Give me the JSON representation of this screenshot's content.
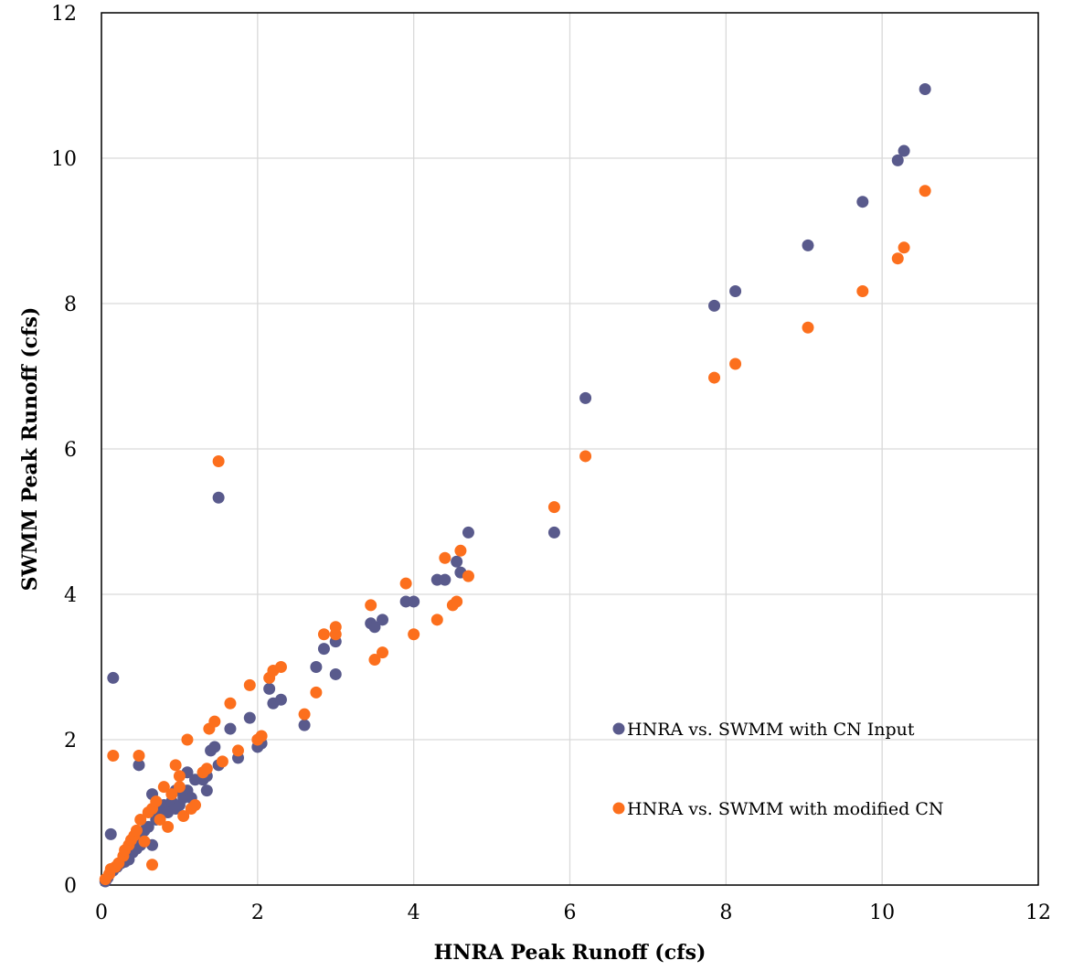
{
  "chart_data": {
    "type": "scatter",
    "title": "",
    "xlabel": "HNRA Peak Runoff (cfs)",
    "ylabel": "SWMM Peak Runoff (cfs)",
    "xlim": [
      0,
      12
    ],
    "ylim": [
      0,
      12
    ],
    "xticks": [
      0,
      2,
      4,
      6,
      8,
      10,
      12
    ],
    "yticks": [
      0,
      2,
      4,
      6,
      8,
      10,
      12
    ],
    "grid": true,
    "legend_position": "lower-right",
    "series": [
      {
        "name": "HNRA vs. SWMM with CN Input",
        "color": "#595a8c",
        "points": [
          [
            0.05,
            0.05
          ],
          [
            0.08,
            0.1
          ],
          [
            0.12,
            0.7
          ],
          [
            0.15,
            2.85
          ],
          [
            0.1,
            0.15
          ],
          [
            0.15,
            0.2
          ],
          [
            0.2,
            0.25
          ],
          [
            0.25,
            0.3
          ],
          [
            0.3,
            0.32
          ],
          [
            0.35,
            0.35
          ],
          [
            0.4,
            0.45
          ],
          [
            0.45,
            0.5
          ],
          [
            0.5,
            0.55
          ],
          [
            0.48,
            1.65
          ],
          [
            0.5,
            0.7
          ],
          [
            0.55,
            0.75
          ],
          [
            0.6,
            0.8
          ],
          [
            0.65,
            0.55
          ],
          [
            0.65,
            1.25
          ],
          [
            0.7,
            0.9
          ],
          [
            0.75,
            1.0
          ],
          [
            0.8,
            1.1
          ],
          [
            0.85,
            1.0
          ],
          [
            0.9,
            1.15
          ],
          [
            0.95,
            1.05
          ],
          [
            0.95,
            1.3
          ],
          [
            1.0,
            1.1
          ],
          [
            1.05,
            1.2
          ],
          [
            1.1,
            1.3
          ],
          [
            1.1,
            1.55
          ],
          [
            1.15,
            1.2
          ],
          [
            1.2,
            1.45
          ],
          [
            1.3,
            1.45
          ],
          [
            1.35,
            1.3
          ],
          [
            1.35,
            1.5
          ],
          [
            1.4,
            1.85
          ],
          [
            1.45,
            1.9
          ],
          [
            1.5,
            1.65
          ],
          [
            1.5,
            5.33
          ],
          [
            1.65,
            2.15
          ],
          [
            1.75,
            1.75
          ],
          [
            1.9,
            2.3
          ],
          [
            2.0,
            1.9
          ],
          [
            2.05,
            1.95
          ],
          [
            2.15,
            2.7
          ],
          [
            2.2,
            2.5
          ],
          [
            2.3,
            2.55
          ],
          [
            2.6,
            2.2
          ],
          [
            2.75,
            3.0
          ],
          [
            2.85,
            3.25
          ],
          [
            3.0,
            2.9
          ],
          [
            3.0,
            3.35
          ],
          [
            3.45,
            3.6
          ],
          [
            3.5,
            3.55
          ],
          [
            3.6,
            3.65
          ],
          [
            3.9,
            3.9
          ],
          [
            4.0,
            3.9
          ],
          [
            4.3,
            4.2
          ],
          [
            4.4,
            4.2
          ],
          [
            4.55,
            4.45
          ],
          [
            4.6,
            4.3
          ],
          [
            4.7,
            4.85
          ],
          [
            5.8,
            4.85
          ],
          [
            6.2,
            6.7
          ],
          [
            7.85,
            7.97
          ],
          [
            8.12,
            8.17
          ],
          [
            9.05,
            8.8
          ],
          [
            9.75,
            9.4
          ],
          [
            10.2,
            9.97
          ],
          [
            10.28,
            10.1
          ],
          [
            10.55,
            10.95
          ]
        ]
      },
      {
        "name": "HNRA vs. SWMM with modified CN",
        "color": "#fc6f1d",
        "points": [
          [
            0.05,
            0.08
          ],
          [
            0.1,
            0.15
          ],
          [
            0.12,
            0.22
          ],
          [
            0.15,
            1.78
          ],
          [
            0.18,
            0.25
          ],
          [
            0.22,
            0.3
          ],
          [
            0.28,
            0.4
          ],
          [
            0.3,
            0.48
          ],
          [
            0.35,
            0.55
          ],
          [
            0.38,
            0.62
          ],
          [
            0.42,
            0.68
          ],
          [
            0.45,
            0.75
          ],
          [
            0.48,
            1.78
          ],
          [
            0.5,
            0.9
          ],
          [
            0.55,
            0.6
          ],
          [
            0.6,
            1.0
          ],
          [
            0.65,
            0.28
          ],
          [
            0.65,
            1.05
          ],
          [
            0.7,
            1.15
          ],
          [
            0.75,
            0.9
          ],
          [
            0.8,
            1.35
          ],
          [
            0.85,
            0.8
          ],
          [
            0.9,
            1.25
          ],
          [
            0.95,
            1.65
          ],
          [
            1.0,
            1.5
          ],
          [
            1.0,
            1.35
          ],
          [
            1.05,
            0.95
          ],
          [
            1.1,
            2.0
          ],
          [
            1.15,
            1.05
          ],
          [
            1.2,
            1.1
          ],
          [
            1.3,
            1.55
          ],
          [
            1.35,
            1.6
          ],
          [
            1.38,
            2.15
          ],
          [
            1.45,
            2.25
          ],
          [
            1.5,
            5.83
          ],
          [
            1.55,
            1.7
          ],
          [
            1.65,
            2.5
          ],
          [
            1.75,
            1.85
          ],
          [
            1.9,
            2.75
          ],
          [
            2.0,
            2.0
          ],
          [
            2.05,
            2.05
          ],
          [
            2.15,
            2.85
          ],
          [
            2.2,
            2.95
          ],
          [
            2.3,
            3.0
          ],
          [
            2.6,
            2.35
          ],
          [
            2.75,
            2.65
          ],
          [
            2.85,
            3.45
          ],
          [
            3.0,
            3.45
          ],
          [
            3.0,
            3.55
          ],
          [
            3.45,
            3.85
          ],
          [
            3.5,
            3.1
          ],
          [
            3.6,
            3.2
          ],
          [
            3.9,
            4.15
          ],
          [
            4.0,
            3.45
          ],
          [
            4.3,
            3.65
          ],
          [
            4.4,
            4.5
          ],
          [
            4.5,
            3.85
          ],
          [
            4.55,
            3.9
          ],
          [
            4.6,
            4.6
          ],
          [
            4.7,
            4.25
          ],
          [
            5.8,
            5.2
          ],
          [
            6.2,
            5.9
          ],
          [
            7.85,
            6.98
          ],
          [
            8.12,
            7.17
          ],
          [
            9.05,
            7.67
          ],
          [
            9.75,
            8.17
          ],
          [
            10.2,
            8.62
          ],
          [
            10.28,
            8.77
          ],
          [
            10.55,
            9.55
          ]
        ]
      }
    ]
  }
}
